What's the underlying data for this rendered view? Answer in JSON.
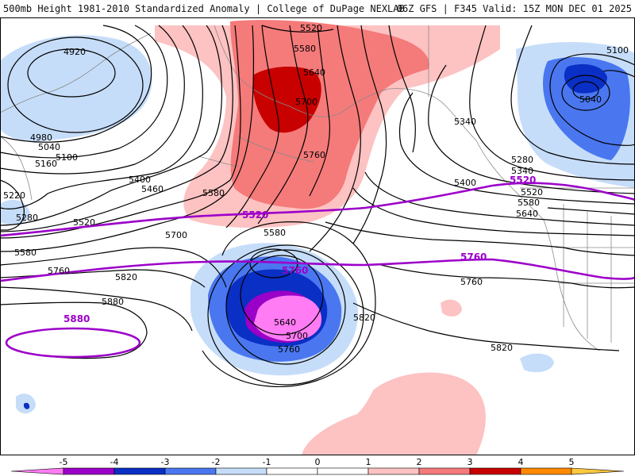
{
  "header": {
    "title": "500mb Height 1981-2010 Standardized Anomaly | College of DuPage NEXLAB",
    "run_info": "06Z GFS | F345 Valid: 15Z MON DEC 01 2025"
  },
  "colors": {
    "neg5": "#ff7cf4",
    "neg4": "#9a00c8",
    "neg3": "#0a2fc4",
    "neg2": "#4a77f0",
    "neg1": "#c6ddf9",
    "pos1": "#fdc2c2",
    "pos2": "#f57a7a",
    "pos3": "#c80000",
    "pos4": "#ff8a00",
    "pos5": "#ffc840",
    "contour": "#000000",
    "highlight_contour": "#9c00c9",
    "coast": "#8a8a8a"
  },
  "contour_labels": [
    "4920",
    "4980",
    "5040",
    "5100",
    "5160",
    "5220",
    "5280",
    "5340",
    "5400",
    "5460",
    "5520",
    "5580",
    "5640",
    "5700",
    "5760",
    "5820",
    "5880"
  ],
  "highlight_labels": [
    "5520",
    "5760",
    "5880"
  ],
  "label_instances": {
    "l4920": "4920",
    "l4980": "4980",
    "l5040w": "5040",
    "l5100w": "5100",
    "l5160w": "5160",
    "l5220": "5220",
    "l5280w": "5280",
    "l5400w": "5400",
    "l5460w": "5460",
    "l5520w": "5520",
    "l5580w": "5580",
    "l5580c": "5580",
    "l5520n": "5520",
    "l5580n": "5580",
    "l5640n": "5640",
    "l5700n": "5700",
    "l5760n": "5760",
    "l5340e": "5340",
    "l5400e": "5400",
    "l5100e": "5100",
    "l5040e": "5040",
    "l5280e": "5280",
    "l5340e2": "5340",
    "l5520e": "5520",
    "l5580e": "5580",
    "l5640e": "5640",
    "l5700c": "5700",
    "l5580low": "5580",
    "l5640low": "5640",
    "l5700low": "5700",
    "l5760low": "5760",
    "l5760w": "5760",
    "l5820w": "5820",
    "l5880w": "5880",
    "l5820c": "5820",
    "l5760e": "5760",
    "l5820e": "5820",
    "p5520": "5520",
    "p5520e": "5520",
    "p5760": "5760",
    "p5760e": "5760",
    "p5880": "5880"
  },
  "scale": {
    "ticks": [
      "-5",
      "-4",
      "-3",
      "-2",
      "-1",
      "0",
      "1",
      "2",
      "3",
      "4",
      "5"
    ]
  }
}
